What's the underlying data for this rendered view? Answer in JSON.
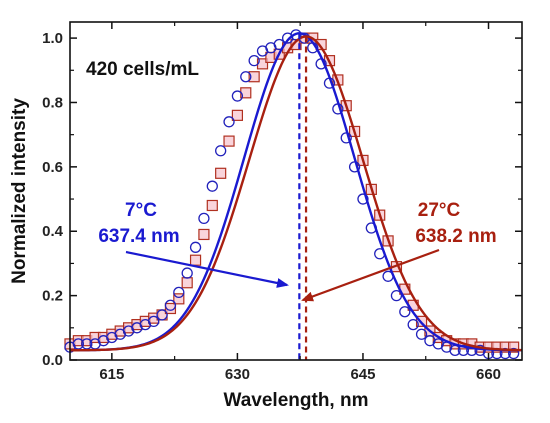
{
  "chart_data": {
    "type": "line",
    "title": "",
    "xlabel": "Wavelength, nm",
    "ylabel": "Normalized intensity",
    "xlim": [
      610,
      664
    ],
    "ylim": [
      0.0,
      1.05
    ],
    "xticks": [
      615,
      630,
      645,
      660
    ],
    "yticks": [
      0.0,
      0.2,
      0.4,
      0.6,
      0.8,
      1.0
    ],
    "x_tick_labels": [
      "615",
      "630",
      "645",
      "660"
    ],
    "y_tick_labels": [
      "0.0",
      "0.2",
      "0.4",
      "0.6",
      "0.8",
      "1.0"
    ],
    "grid": false,
    "annotations": {
      "concentration": "420 cells/mL",
      "cold_temp": "7°C",
      "cold_peak": "637.4 nm",
      "warm_temp": "27°C",
      "warm_peak": "638.2 nm"
    },
    "series": [
      {
        "kind": "measured",
        "marker": "circle",
        "color": "#2222bb",
        "peak_nm": 637.4,
        "x": [
          610,
          611,
          612,
          613,
          614,
          615,
          616,
          617,
          618,
          619,
          620,
          621,
          622,
          623,
          624,
          625,
          626,
          627,
          628,
          629,
          630,
          631,
          632,
          633,
          634,
          635,
          636,
          637,
          638,
          639,
          640,
          641,
          642,
          643,
          644,
          645,
          646,
          647,
          648,
          649,
          650,
          651,
          652,
          653,
          654,
          655,
          656,
          657,
          658,
          659,
          660,
          661,
          662,
          663
        ],
        "y": [
          0.04,
          0.05,
          0.05,
          0.05,
          0.06,
          0.07,
          0.08,
          0.09,
          0.1,
          0.11,
          0.12,
          0.14,
          0.17,
          0.21,
          0.27,
          0.35,
          0.44,
          0.54,
          0.65,
          0.74,
          0.82,
          0.88,
          0.93,
          0.96,
          0.97,
          0.98,
          1.0,
          1.01,
          1.0,
          0.97,
          0.92,
          0.86,
          0.78,
          0.69,
          0.6,
          0.5,
          0.41,
          0.33,
          0.26,
          0.2,
          0.15,
          0.11,
          0.08,
          0.06,
          0.05,
          0.04,
          0.03,
          0.03,
          0.03,
          0.03,
          0.02,
          0.02,
          0.02,
          0.02
        ]
      },
      {
        "kind": "measured",
        "marker": "square",
        "color": "#b03020",
        "peak_nm": 638.2,
        "x": [
          610,
          611,
          612,
          613,
          614,
          615,
          616,
          617,
          618,
          619,
          620,
          621,
          622,
          623,
          624,
          625,
          626,
          627,
          628,
          629,
          630,
          631,
          632,
          633,
          634,
          635,
          636,
          637,
          638,
          639,
          640,
          641,
          642,
          643,
          644,
          645,
          646,
          647,
          648,
          649,
          650,
          651,
          652,
          653,
          654,
          655,
          656,
          657,
          658,
          659,
          660,
          661,
          662,
          663
        ],
        "y": [
          0.05,
          0.06,
          0.06,
          0.07,
          0.07,
          0.08,
          0.09,
          0.1,
          0.11,
          0.12,
          0.13,
          0.14,
          0.16,
          0.19,
          0.24,
          0.31,
          0.39,
          0.48,
          0.58,
          0.68,
          0.76,
          0.83,
          0.88,
          0.92,
          0.94,
          0.95,
          0.97,
          0.98,
          1.0,
          1.0,
          0.98,
          0.93,
          0.87,
          0.79,
          0.71,
          0.62,
          0.53,
          0.45,
          0.37,
          0.29,
          0.22,
          0.17,
          0.12,
          0.09,
          0.07,
          0.06,
          0.05,
          0.05,
          0.05,
          0.04,
          0.04,
          0.04,
          0.04,
          0.04
        ]
      },
      {
        "kind": "fit",
        "color": "#1a1ad0",
        "center": 637.4,
        "amplitude": 0.985,
        "sigma": 6.6,
        "baseline": 0.03
      },
      {
        "kind": "fit",
        "color": "#a82010",
        "center": 638.2,
        "amplitude": 0.975,
        "sigma": 6.8,
        "baseline": 0.03
      }
    ]
  }
}
